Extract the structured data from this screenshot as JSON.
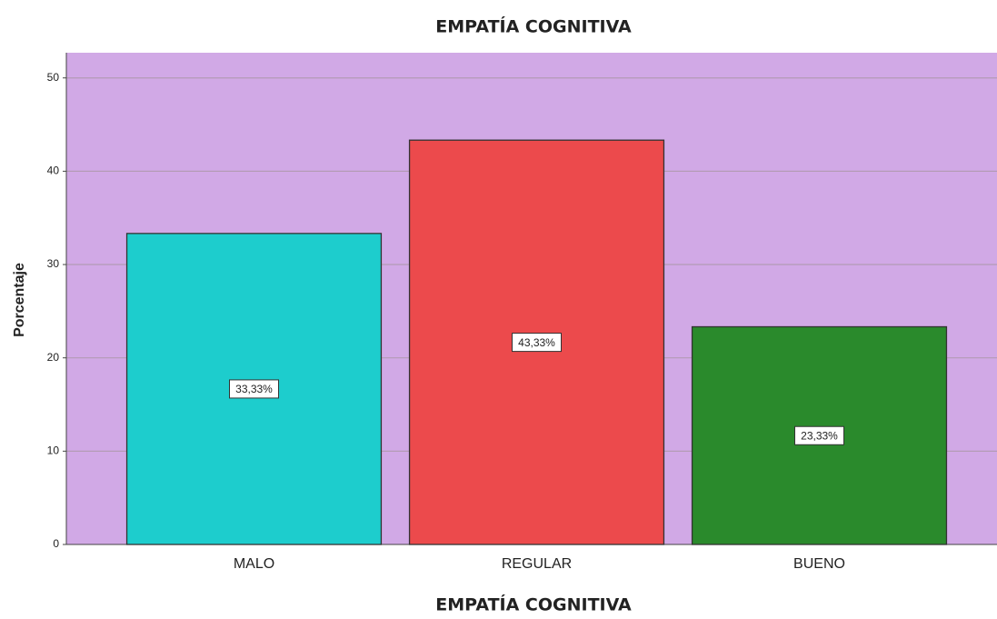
{
  "chart_data": {
    "type": "bar",
    "title": "EMPATÍA COGNITIVA",
    "x_label": "EMPATÍA COGNITIVA",
    "y_label": "Porcentaje",
    "categories": [
      "MALO",
      "REGULAR",
      "BUENO"
    ],
    "values": [
      33.33,
      43.33,
      23.33
    ],
    "value_labels": [
      "33,33%",
      "43,33%",
      "23,33%"
    ],
    "colors": [
      "#1dcdcd",
      "#ec4a4c",
      "#2a8a2c"
    ],
    "background": "#d1a9e6",
    "ylim": [
      0,
      52.7
    ],
    "yticks": [
      0,
      10,
      20,
      30,
      40,
      50
    ],
    "grid": true
  }
}
